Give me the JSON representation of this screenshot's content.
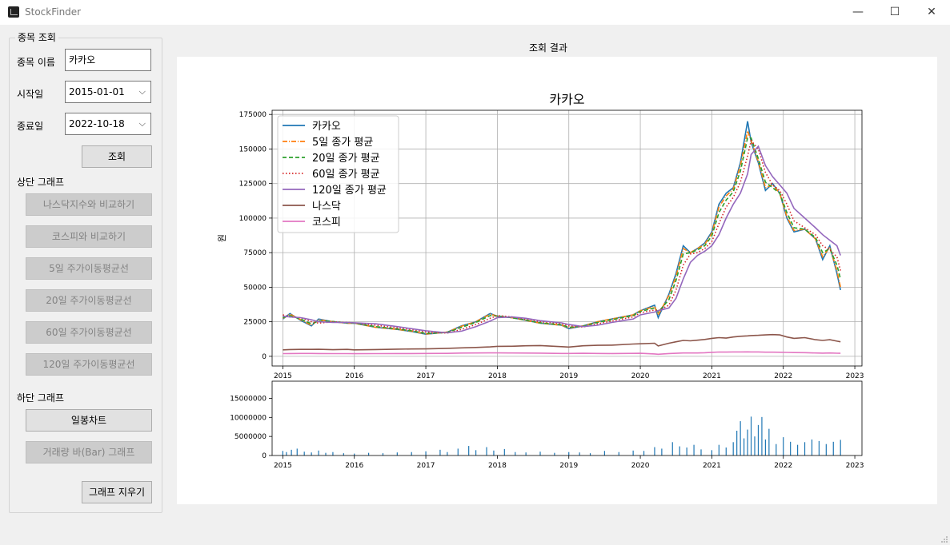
{
  "window": {
    "title": "StockFinder",
    "controls": {
      "minimize": "—",
      "maximize": "☐",
      "close": "✕"
    }
  },
  "query": {
    "group_title": "종목 조회",
    "stock_name_label": "종목 이름",
    "stock_name_value": "카카오",
    "start_label": "시작일",
    "start_value": "2015-01-01",
    "end_label": "종료일",
    "end_value": "2022-10-18",
    "search_button": "조회"
  },
  "upper_graph": {
    "section_label": "상단 그래프",
    "buttons": [
      "나스닥지수와 비교하기",
      "코스피와 비교하기",
      "5일 주가이동평균선",
      "20일 주가이동평균선",
      "60일 주가이동평균선",
      "120일 주가이동평균선"
    ]
  },
  "lower_graph": {
    "section_label": "하단 그래프",
    "candle_button": "일봉차트",
    "volume_button": "거래량 바(Bar) 그래프"
  },
  "clear_button": "그래프 지우기",
  "result_title": "조회 결과",
  "colors": {
    "kakao": "#1f77b4",
    "ma5": "#ff7f0e",
    "ma20": "#2ca02c",
    "ma60": "#d62728",
    "ma120": "#9467bd",
    "nasdaq": "#8c564b",
    "kospi": "#e377c2"
  },
  "chart_data": [
    {
      "type": "line",
      "title": "카카오",
      "xlabel": "",
      "ylabel": "원",
      "x_ticks": [
        "2015",
        "2016",
        "2017",
        "2018",
        "2019",
        "2020",
        "2021",
        "2022",
        "2023"
      ],
      "y_ticks": [
        "0",
        "25000",
        "50000",
        "75000",
        "100000",
        "125000",
        "150000",
        "175000"
      ],
      "xlim": [
        2014.85,
        2023.1
      ],
      "ylim": [
        -7000,
        178000
      ],
      "grid": true,
      "legend": "top-left",
      "x": [
        2015.0,
        2015.1,
        2015.25,
        2015.4,
        2015.5,
        2015.7,
        2015.9,
        2016.0,
        2016.3,
        2016.6,
        2016.8,
        2017.0,
        2017.3,
        2017.5,
        2017.7,
        2017.9,
        2018.0,
        2018.2,
        2018.4,
        2018.6,
        2018.9,
        2019.0,
        2019.2,
        2019.4,
        2019.6,
        2019.9,
        2020.0,
        2020.2,
        2020.25,
        2020.4,
        2020.5,
        2020.6,
        2020.7,
        2020.8,
        2020.9,
        2021.0,
        2021.1,
        2021.2,
        2021.3,
        2021.4,
        2021.5,
        2021.55,
        2021.65,
        2021.75,
        2021.85,
        2021.95,
        2022.05,
        2022.15,
        2022.3,
        2022.45,
        2022.55,
        2022.65,
        2022.75,
        2022.8
      ],
      "series": [
        {
          "name": "카카오",
          "values": [
            27000,
            31000,
            26000,
            22000,
            27000,
            25000,
            24000,
            24000,
            21000,
            19500,
            18000,
            16000,
            17500,
            22000,
            25000,
            31000,
            29000,
            28000,
            26000,
            24000,
            22500,
            20000,
            22000,
            25000,
            27000,
            30000,
            33000,
            37000,
            28000,
            45000,
            60000,
            80000,
            75000,
            78000,
            82000,
            90000,
            110000,
            118000,
            122000,
            140000,
            170000,
            155000,
            140000,
            120000,
            125000,
            118000,
            100000,
            90000,
            92000,
            85000,
            70000,
            80000,
            60000,
            48000
          ]
        },
        {
          "name": "5일 종가 평균",
          "values": [
            27500,
            30500,
            26500,
            22500,
            26500,
            25000,
            24000,
            24000,
            21000,
            19500,
            18200,
            16200,
            17500,
            21800,
            25000,
            30500,
            29000,
            28000,
            26000,
            24000,
            22500,
            20500,
            22000,
            25000,
            27000,
            30000,
            33000,
            36000,
            30000,
            44000,
            58000,
            78000,
            75000,
            78000,
            81000,
            89000,
            108000,
            116000,
            121000,
            138000,
            163000,
            156000,
            141000,
            122000,
            124000,
            118000,
            101000,
            91000,
            92000,
            85000,
            72000,
            79000,
            62000,
            50000
          ]
        },
        {
          "name": "20일 종가 평균",
          "values": [
            28000,
            29500,
            27000,
            23500,
            25500,
            25200,
            24200,
            24000,
            21500,
            19800,
            18500,
            16600,
            17200,
            21000,
            24500,
            29500,
            29200,
            28000,
            26200,
            24300,
            22800,
            21000,
            21800,
            24500,
            26500,
            29500,
            32500,
            35000,
            32000,
            41000,
            55000,
            74000,
            75000,
            77000,
            80000,
            87000,
            104000,
            113000,
            119000,
            134000,
            158000,
            158000,
            143000,
            126000,
            122000,
            118000,
            104000,
            93000,
            92000,
            86000,
            75000,
            78000,
            66000,
            56000
          ]
        },
        {
          "name": "60일 종가 평균",
          "values": [
            30000,
            28500,
            28000,
            25000,
            24000,
            25000,
            24500,
            24200,
            22500,
            20500,
            19200,
            17500,
            16800,
            19500,
            23000,
            27500,
            29500,
            28500,
            26800,
            25000,
            23500,
            22000,
            21200,
            23500,
            25500,
            28500,
            31500,
            33500,
            33000,
            37000,
            48000,
            66000,
            74000,
            75000,
            78000,
            83000,
            96000,
            108000,
            115000,
            126000,
            145000,
            156000,
            150000,
            133000,
            124000,
            120000,
            110000,
            98000,
            93000,
            88000,
            80000,
            77000,
            72000,
            62000
          ]
        },
        {
          "name": "120일 종가 평균",
          "values": [
            29000,
            28500,
            28000,
            26500,
            25000,
            24500,
            24500,
            24300,
            23500,
            21500,
            20000,
            18500,
            17000,
            18200,
            21500,
            25500,
            28000,
            28500,
            27500,
            25800,
            24200,
            23000,
            21500,
            22500,
            24500,
            27000,
            30000,
            32000,
            33000,
            35000,
            42000,
            56000,
            68000,
            73000,
            76000,
            80000,
            88000,
            100000,
            110000,
            118000,
            132000,
            146000,
            152000,
            138000,
            130000,
            124000,
            118000,
            107000,
            100000,
            93000,
            88000,
            84000,
            80000,
            73000
          ]
        },
        {
          "name": "나스닥",
          "values": [
            4700,
            4900,
            5000,
            5000,
            5100,
            4800,
            5000,
            4700,
            4900,
            5200,
            5300,
            5400,
            5800,
            6100,
            6400,
            6800,
            7200,
            7300,
            7600,
            7800,
            7000,
            6700,
            7600,
            8000,
            8100,
            8900,
            9100,
            9500,
            7500,
            9500,
            10500,
            11500,
            11200,
            11700,
            12200,
            13000,
            13500,
            13200,
            14000,
            14500,
            14800,
            15000,
            15200,
            15500,
            15700,
            15500,
            14000,
            13000,
            13500,
            12000,
            11500,
            12000,
            11000,
            10500
          ]
        },
        {
          "name": "코스피",
          "values": [
            1950,
            2000,
            2100,
            2050,
            2000,
            1950,
            1950,
            1900,
            1950,
            2000,
            2000,
            2050,
            2150,
            2350,
            2400,
            2500,
            2500,
            2450,
            2350,
            2300,
            2050,
            2050,
            2200,
            2100,
            2000,
            2150,
            2200,
            1750,
            1500,
            2000,
            2200,
            2400,
            2400,
            2400,
            2600,
            2900,
            3100,
            3050,
            3150,
            3200,
            3250,
            3200,
            3150,
            3000,
            3000,
            2950,
            2800,
            2700,
            2650,
            2400,
            2300,
            2400,
            2250,
            2200
          ]
        }
      ]
    },
    {
      "type": "bar",
      "title": "",
      "xlabel": "",
      "ylabel": "",
      "x_ticks": [
        "2015",
        "2016",
        "2017",
        "2018",
        "2019",
        "2020",
        "2021",
        "2022",
        "2023"
      ],
      "y_ticks": [
        "0",
        "5000000",
        "10000000",
        "15000000"
      ],
      "xlim": [
        2014.85,
        2023.1
      ],
      "ylim": [
        0,
        19500000
      ],
      "grid": false,
      "series": [
        {
          "name": "",
          "x": [
            2015.0,
            2015.05,
            2015.12,
            2015.2,
            2015.3,
            2015.4,
            2015.5,
            2015.6,
            2015.7,
            2015.85,
            2016.0,
            2016.2,
            2016.4,
            2016.6,
            2016.8,
            2017.0,
            2017.2,
            2017.3,
            2017.45,
            2017.6,
            2017.7,
            2017.85,
            2017.95,
            2018.1,
            2018.25,
            2018.4,
            2018.6,
            2018.8,
            2019.0,
            2019.15,
            2019.3,
            2019.5,
            2019.7,
            2019.9,
            2020.05,
            2020.2,
            2020.3,
            2020.45,
            2020.55,
            2020.65,
            2020.75,
            2020.85,
            2021.0,
            2021.1,
            2021.2,
            2021.3,
            2021.35,
            2021.4,
            2021.45,
            2021.5,
            2021.55,
            2021.6,
            2021.65,
            2021.7,
            2021.75,
            2021.8,
            2021.9,
            2022.0,
            2022.1,
            2022.2,
            2022.3,
            2022.4,
            2022.5,
            2022.6,
            2022.7,
            2022.8
          ],
          "values": [
            1200000,
            900000,
            1500000,
            1800000,
            1000000,
            800000,
            1300000,
            700000,
            900000,
            600000,
            500000,
            700000,
            600000,
            800000,
            900000,
            1100000,
            1500000,
            900000,
            1800000,
            2500000,
            1400000,
            2200000,
            1300000,
            1700000,
            900000,
            800000,
            1000000,
            700000,
            900000,
            800000,
            600000,
            1200000,
            900000,
            1300000,
            1200000,
            2200000,
            1800000,
            3500000,
            2400000,
            2100000,
            2800000,
            1600000,
            1400000,
            2800000,
            2100000,
            3500000,
            6500000,
            9000000,
            4500000,
            6800000,
            10200000,
            5000000,
            8000000,
            10100000,
            4200000,
            7000000,
            3000000,
            4800000,
            3600000,
            2800000,
            3500000,
            4200000,
            3800000,
            3000000,
            3600000,
            4100000
          ]
        }
      ]
    }
  ]
}
